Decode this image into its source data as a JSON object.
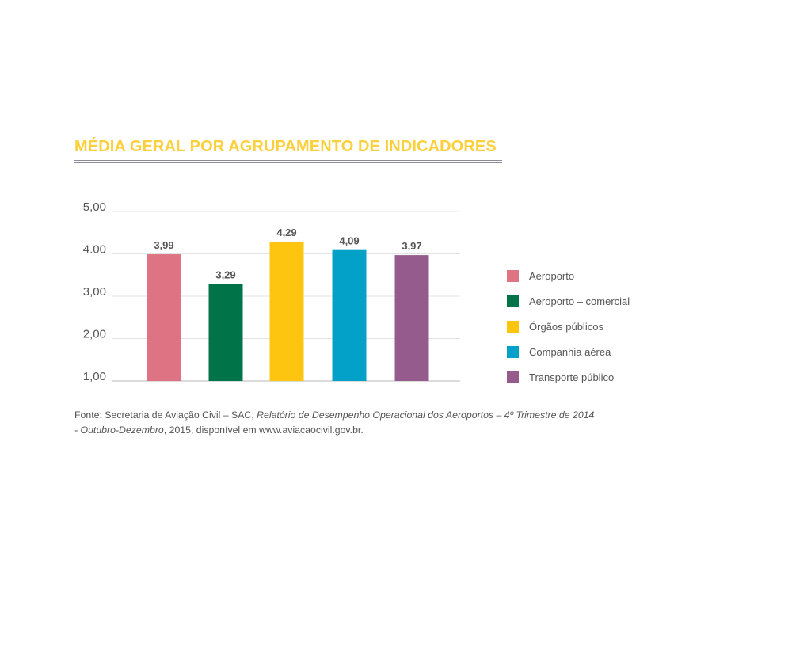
{
  "chart_data": {
    "type": "bar",
    "title": "MÉDIA GERAL POR AGRUPAMENTO DE INDICADORES",
    "categories": [
      "Aeroporto",
      "Aeroporto – comercial",
      "Órgãos públicos",
      "Companhia aérea",
      "Transporte público"
    ],
    "values": [
      3.99,
      3.29,
      4.29,
      4.09,
      3.97
    ],
    "value_labels": [
      "3,99",
      "3,29",
      "4,29",
      "4,09",
      "3,97"
    ],
    "colors": [
      "#de7384",
      "#007448",
      "#fdc50f",
      "#03a0c8",
      "#955b8d"
    ],
    "ylim": [
      1,
      5
    ],
    "yticks": [
      1,
      2,
      3,
      4,
      5
    ],
    "ytick_labels": [
      "1,00",
      "2,00",
      "3,00",
      "4.00",
      "5,00"
    ],
    "xlabel": "",
    "ylabel": "",
    "grid": true,
    "legend": "right"
  },
  "source": {
    "text1": "Fonte: Secretaria de Aviação Civil – SAC, ",
    "italic1": "Relatório de Desempenho Operacional dos Aeroportos – 4º Trimestre de 2014",
    "text2": " ",
    "italic2": "- Outubro-Dezembro",
    "text3": ", 2015, disponível em www.aviacaocivil.gov.br."
  },
  "colors": {
    "title": "#fcd03c",
    "rule": "#8d8d97",
    "grid": "#e3e3e3",
    "axis_text": "#555555",
    "value_label": "#555555"
  }
}
